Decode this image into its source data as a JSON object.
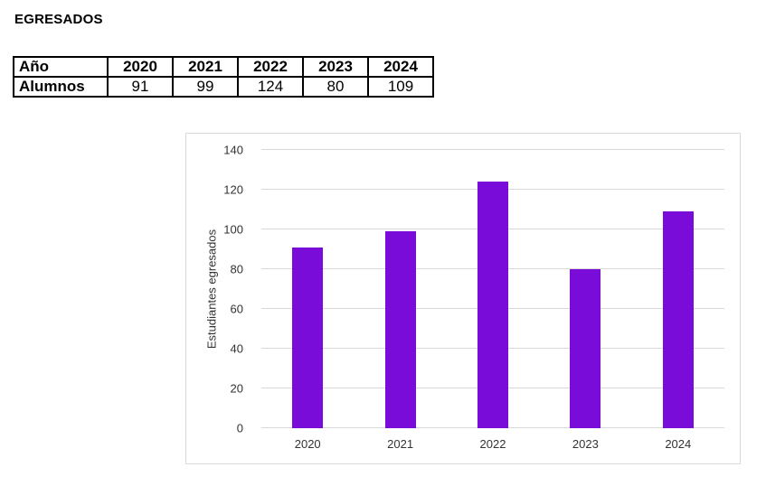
{
  "page": {
    "title": "EGRESADOS"
  },
  "table": {
    "header": [
      "Año",
      "2020",
      "2021",
      "2022",
      "2023",
      "2024"
    ],
    "data_row": [
      "Alumnos",
      "91",
      "99",
      "124",
      "80",
      "109"
    ]
  },
  "chart_data": {
    "type": "bar",
    "categories": [
      "2020",
      "2021",
      "2022",
      "2023",
      "2024"
    ],
    "values": [
      91,
      99,
      124,
      80,
      109
    ],
    "title": "",
    "xlabel": "",
    "ylabel": "Estudiantes egresados",
    "ylim": [
      0,
      140
    ],
    "ytick_step": 20,
    "grid": true,
    "legend_position": "none",
    "bar_color": "#7A0CD9",
    "gridline_color": "#D9D9D9",
    "frame_border_color": "#D9D9D9",
    "axis_text_color": "#333333"
  }
}
